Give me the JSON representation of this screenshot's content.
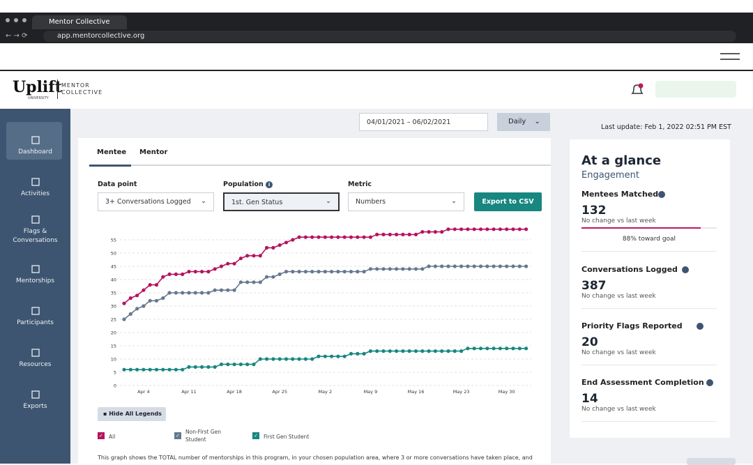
{
  "browser": {
    "tab_title": "Mentor Collective",
    "url": "app.mentorcollective.org"
  },
  "header": {
    "logo": "Uplift",
    "logo_sub": "UNIVERSITY",
    "brand_line1": "MENTOR",
    "brand_line2": "COLLECTIVE"
  },
  "sidebar": [
    "Dashboard",
    "Activities",
    "Flags & Conversations",
    "Mentorships",
    "Participants",
    "Resources",
    "Exports"
  ],
  "toolbar": {
    "date_range": "04/01/2021 – 06/02/2021",
    "interval": "Daily",
    "last_update": "Last update: Feb 1, 2022 02:51 PM EST"
  },
  "tabs": [
    "Mentee",
    "Mentor"
  ],
  "filters": [
    {
      "label": "Data point",
      "value": "3+ Conversations Logged"
    },
    {
      "label": "Population",
      "value": "1st. Gen Status"
    },
    {
      "label": "Metric",
      "value": "Numbers"
    }
  ],
  "export_button": "Export to CSV",
  "chart_data": {
    "type": "line",
    "categories": [
      null,
      null,
      null,
      "Apr 4",
      null,
      null,
      null,
      null,
      null,
      null,
      "Apr 11",
      null,
      null,
      null,
      null,
      null,
      null,
      "Apr 18",
      null,
      null,
      null,
      null,
      null,
      null,
      "Apr 25",
      null,
      null,
      null,
      null,
      null,
      null,
      "May 2",
      null,
      null,
      null,
      null,
      null,
      null,
      "May 9",
      null,
      null,
      null,
      null,
      null,
      null,
      "May 16",
      null,
      null,
      null,
      null,
      null,
      null,
      "May 23",
      null,
      null,
      null,
      null,
      null,
      null,
      "May 30",
      null,
      null,
      null
    ],
    "series": [
      {
        "name": "All",
        "color": "#b5145e",
        "values": [
          31,
          33,
          34,
          36,
          38,
          38,
          41,
          42,
          42,
          42,
          43,
          43,
          43,
          43,
          44,
          45,
          46,
          46,
          48,
          49,
          49,
          49,
          52,
          52,
          53,
          54,
          55,
          56,
          56,
          56,
          56,
          56,
          56,
          56,
          56,
          56,
          56,
          56,
          56,
          57,
          57,
          57,
          57,
          57,
          57,
          57,
          58,
          58,
          58,
          58,
          59,
          59,
          59,
          59,
          59,
          59,
          59,
          59,
          59,
          59,
          59,
          59,
          59
        ]
      },
      {
        "name": "Non-First Gen Student",
        "color": "#66788f",
        "values": [
          25,
          27,
          29,
          30,
          32,
          32,
          33,
          35,
          35,
          35,
          35,
          35,
          35,
          35,
          36,
          36,
          36,
          36,
          39,
          39,
          39,
          39,
          41,
          41,
          42,
          43,
          43,
          43,
          43,
          43,
          43,
          43,
          43,
          43,
          43,
          43,
          43,
          43,
          44,
          44,
          44,
          44,
          44,
          44,
          44,
          44,
          44,
          45,
          45,
          45,
          45,
          45,
          45,
          45,
          45,
          45,
          45,
          45,
          45,
          45,
          45,
          45,
          45
        ]
      },
      {
        "name": "First Gen Student",
        "color": "#17877f",
        "values": [
          6,
          6,
          6,
          6,
          6,
          6,
          6,
          6,
          6,
          6,
          7,
          7,
          7,
          7,
          7,
          8,
          8,
          8,
          8,
          8,
          8,
          10,
          10,
          10,
          10,
          10,
          10,
          10,
          10,
          10,
          11,
          11,
          11,
          11,
          11,
          12,
          12,
          12,
          13,
          13,
          13,
          13,
          13,
          13,
          13,
          13,
          13,
          13,
          13,
          13,
          13,
          13,
          13,
          14,
          14,
          14,
          14,
          14,
          14,
          14,
          14,
          14,
          14
        ]
      }
    ],
    "ylim": [
      0,
      60
    ],
    "yticks": [
      0,
      5,
      10,
      15,
      20,
      25,
      30,
      35,
      40,
      45,
      50,
      55
    ],
    "grid": true
  },
  "legend_toggle": "Hide All Legends",
  "caption": "This graph shows the TOTAL number of mentorships in this program, in your chosen population area, where 3 or more conversations have taken place, and",
  "glance": {
    "title": "At a glance",
    "subtitle": "Engagement",
    "metrics": [
      {
        "label": "Mentees Matched",
        "value": 132,
        "note": "No change vs last week"
      },
      {
        "label": "Conversations Logged",
        "value": 387,
        "note": "No change vs last week"
      },
      {
        "label": "Priority Flags Reported",
        "value": 20,
        "note": "No change vs last week"
      },
      {
        "label": "End Assessment Completion",
        "value": 14,
        "note": "No change vs last week"
      }
    ],
    "goal": {
      "value": 88,
      "label": "88% toward goal"
    }
  }
}
